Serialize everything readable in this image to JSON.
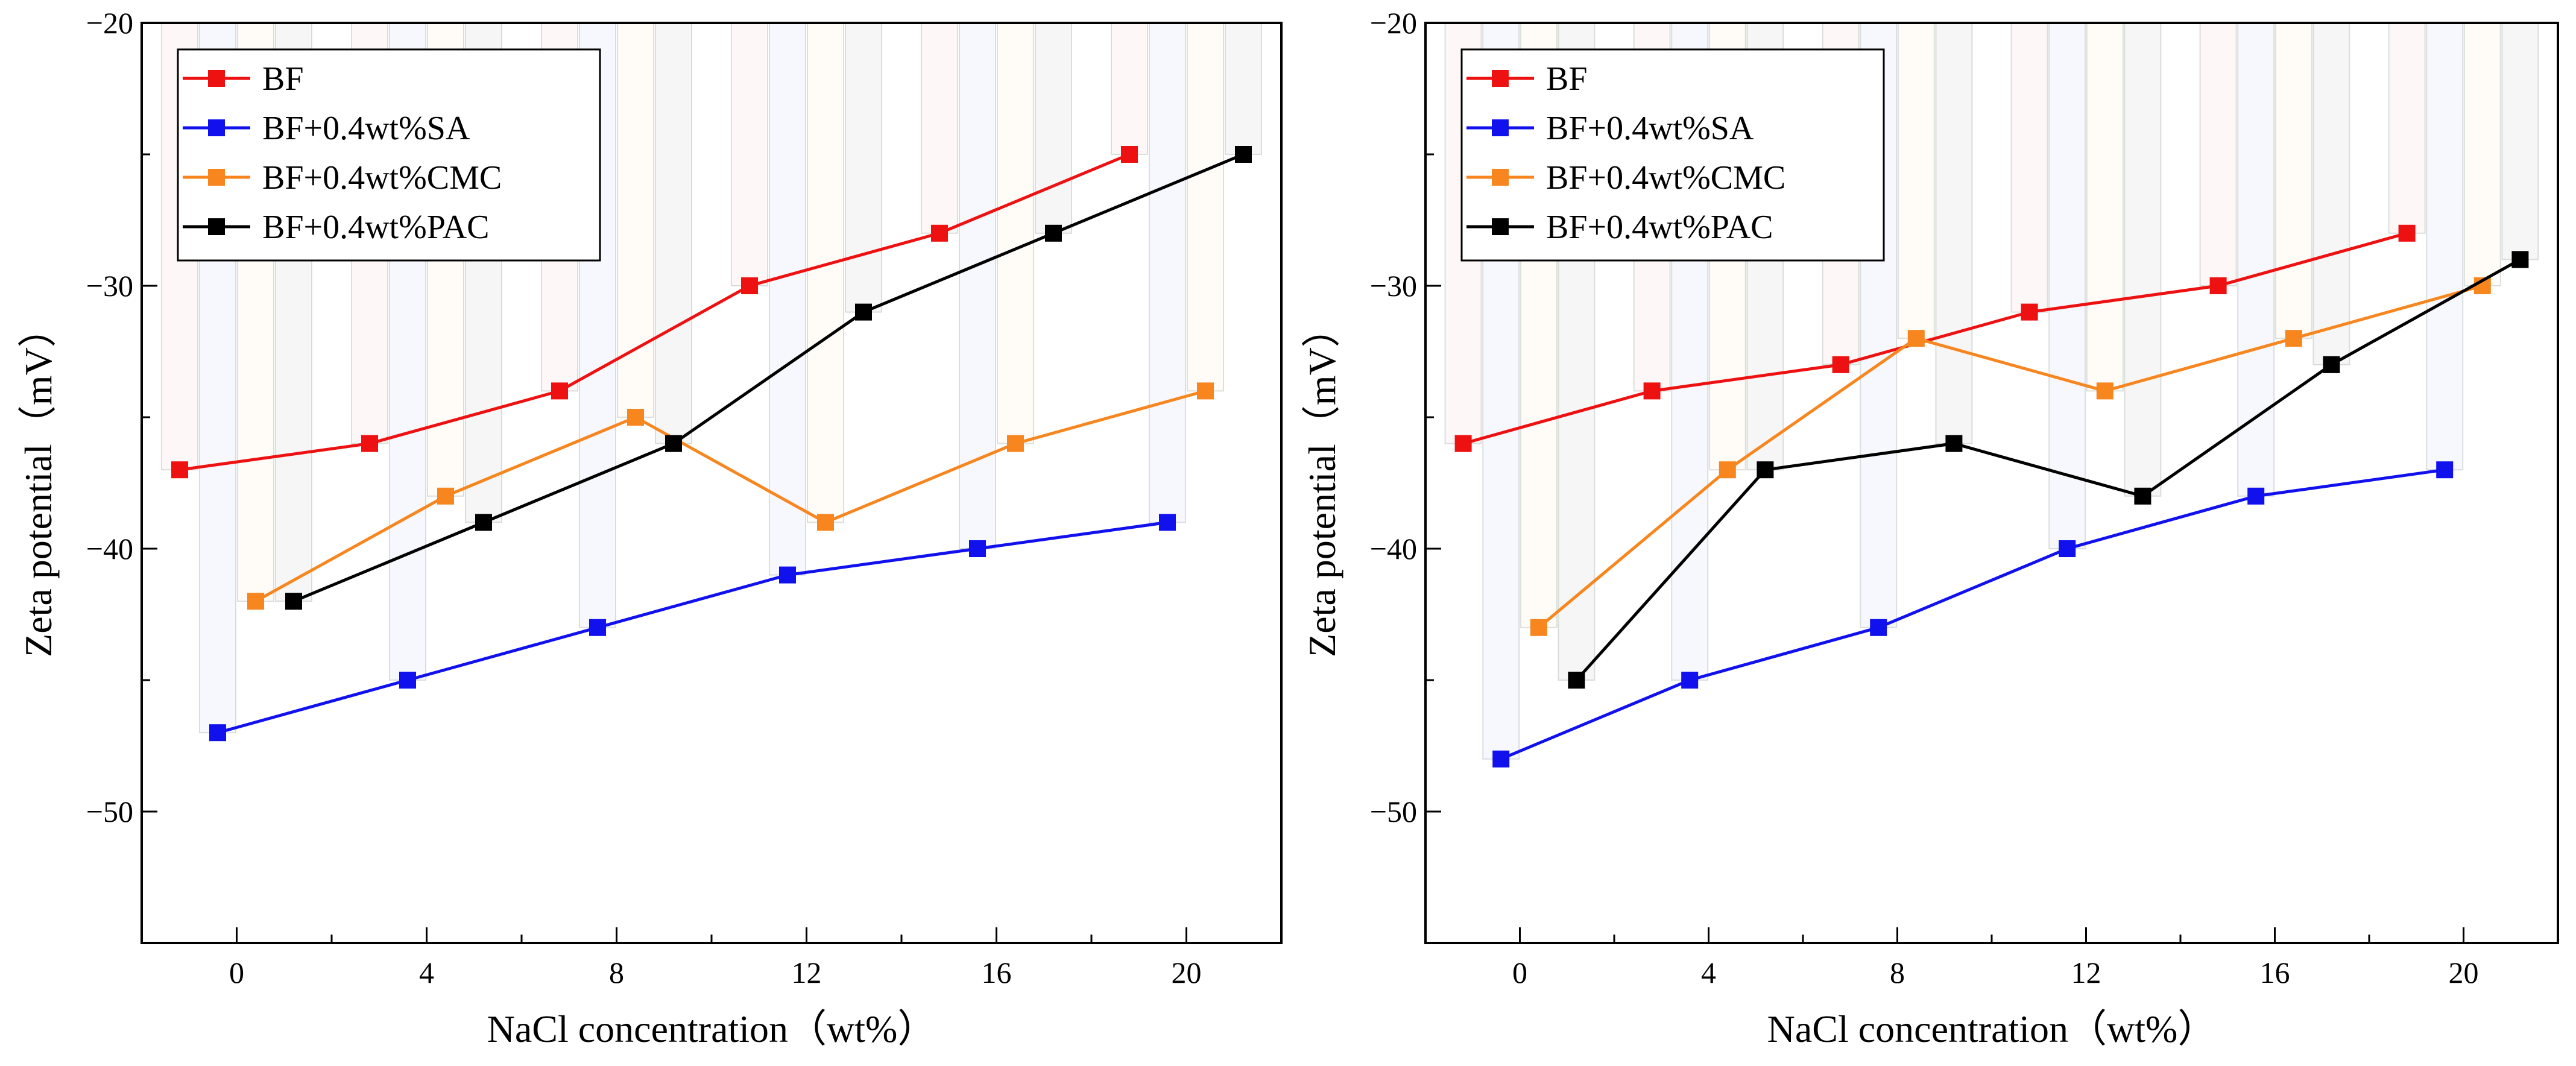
{
  "chart_data": [
    {
      "type": "line",
      "panel": "left",
      "xlabel": "NaCl concentration（wt%）",
      "ylabel": "Zeta potential（mV）",
      "xlim": [
        -2,
        22
      ],
      "ylim": [
        -55,
        -20
      ],
      "x_ticks": [
        0,
        4,
        8,
        12,
        16,
        20
      ],
      "y_ticks": [
        -20,
        -30,
        -40,
        -50
      ],
      "x_tick_labels": [
        "0",
        "4",
        "8",
        "12",
        "16",
        "20"
      ],
      "y_tick_labels": [
        "−20",
        "−30",
        "−40",
        "−50"
      ],
      "legend_position": "top-left",
      "series": [
        {
          "name": "BF",
          "color": "#ee1111",
          "x": [
            -1.2,
            2.8,
            6.8,
            10.8,
            14.8,
            18.8
          ],
          "values": [
            -37,
            -36,
            -34,
            -30,
            -28,
            -25
          ]
        },
        {
          "name": "BF+0.4wt%SA",
          "color": "#1111ee",
          "x": [
            -0.4,
            3.6,
            7.6,
            11.6,
            15.6,
            19.6
          ],
          "values": [
            -47,
            -45,
            -43,
            -41,
            -40,
            -39
          ]
        },
        {
          "name": "BF+0.4wt%CMC",
          "color": "#f7861f",
          "x": [
            0.4,
            4.4,
            8.4,
            12.4,
            16.4,
            20.4
          ],
          "values": [
            -42,
            -38,
            -35,
            -39,
            -36,
            -34
          ]
        },
        {
          "name": "BF+0.4wt%PAC",
          "color": "#000000",
          "x": [
            1.2,
            5.2,
            9.2,
            13.2,
            17.2,
            21.2
          ],
          "values": [
            -42,
            -39,
            -36,
            -31,
            -28,
            -25
          ]
        }
      ]
    },
    {
      "type": "line",
      "panel": "right",
      "xlabel": "NaCl concentration（wt%）",
      "ylabel": "Zeta potential（mV）",
      "xlim": [
        -2,
        22
      ],
      "ylim": [
        -55,
        -20
      ],
      "x_ticks": [
        0,
        4,
        8,
        12,
        16,
        20
      ],
      "y_ticks": [
        -20,
        -30,
        -40,
        -50
      ],
      "x_tick_labels": [
        "0",
        "4",
        "8",
        "12",
        "16",
        "20"
      ],
      "y_tick_labels": [
        "−20",
        "−30",
        "−40",
        "−50"
      ],
      "legend_position": "top-left",
      "series": [
        {
          "name": "BF",
          "color": "#ee1111",
          "x": [
            -1.2,
            2.8,
            6.8,
            10.8,
            14.8,
            18.8
          ],
          "values": [
            -36,
            -34,
            -33,
            -31,
            -30,
            -28
          ]
        },
        {
          "name": "BF+0.4wt%SA",
          "color": "#1111ee",
          "x": [
            -0.4,
            3.6,
            7.6,
            11.6,
            15.6,
            19.6
          ],
          "values": [
            -48,
            -45,
            -43,
            -40,
            -38,
            -37
          ]
        },
        {
          "name": "BF+0.4wt%CMC",
          "color": "#f7861f",
          "x": [
            0.4,
            4.4,
            8.4,
            12.4,
            16.4,
            20.4
          ],
          "values": [
            -43,
            -37,
            -32,
            -34,
            -32,
            -30
          ]
        },
        {
          "name": "BF+0.4wt%PAC",
          "color": "#000000",
          "x": [
            1.2,
            5.2,
            9.2,
            13.2,
            17.2,
            21.2
          ],
          "values": [
            -45,
            -37,
            -36,
            -38,
            -33,
            -29
          ]
        }
      ]
    }
  ]
}
